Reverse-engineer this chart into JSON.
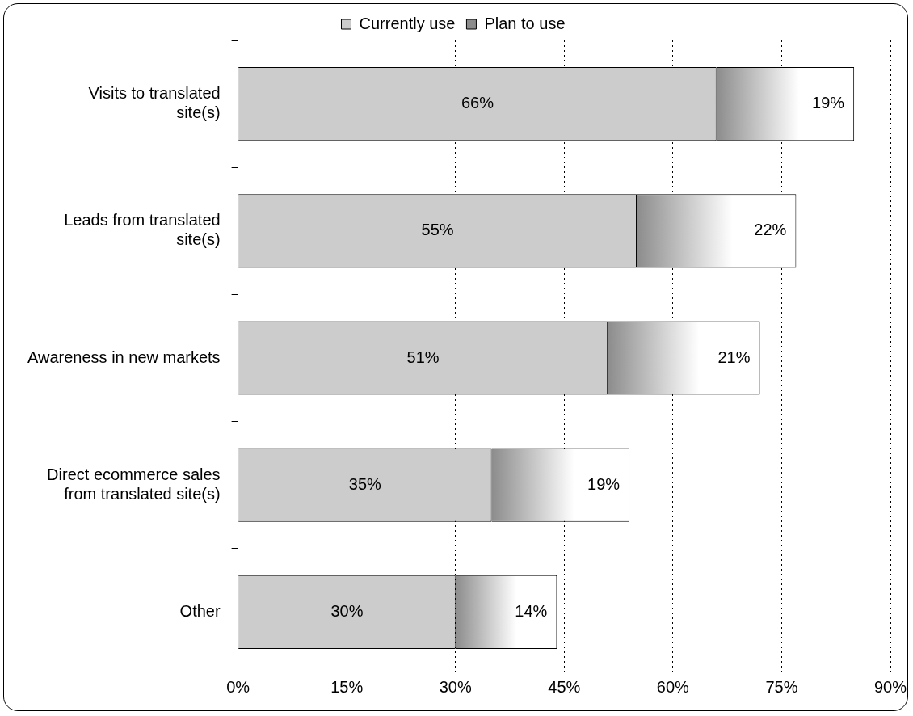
{
  "chart_data": {
    "type": "bar",
    "orientation": "horizontal",
    "stacked": true,
    "categories": [
      "Visits to translated site(s)",
      "Leads from translated site(s)",
      "Awareness in new markets",
      "Direct ecommerce sales from translated site(s)",
      "Other"
    ],
    "series": [
      {
        "name": "Currently use",
        "color": "#cccccc",
        "values": [
          66,
          55,
          51,
          35,
          30
        ],
        "value_labels": [
          "66%",
          "55%",
          "51%",
          "35%",
          "30%"
        ]
      },
      {
        "name": "Plan to use",
        "color": "#8c8c8c",
        "values": [
          19,
          22,
          21,
          19,
          14
        ],
        "value_labels": [
          "19%",
          "22%",
          "21%",
          "19%",
          "14%"
        ]
      }
    ],
    "xlim": [
      0,
      90
    ],
    "xticks": [
      {
        "value": 0,
        "label": "0%"
      },
      {
        "value": 15,
        "label": "15%"
      },
      {
        "value": 30,
        "label": "30%"
      },
      {
        "value": 45,
        "label": "45%"
      },
      {
        "value": 60,
        "label": "60%"
      },
      {
        "value": 75,
        "label": "75%"
      },
      {
        "value": 90,
        "label": "90%"
      }
    ],
    "grid": "x",
    "legend": "top"
  }
}
